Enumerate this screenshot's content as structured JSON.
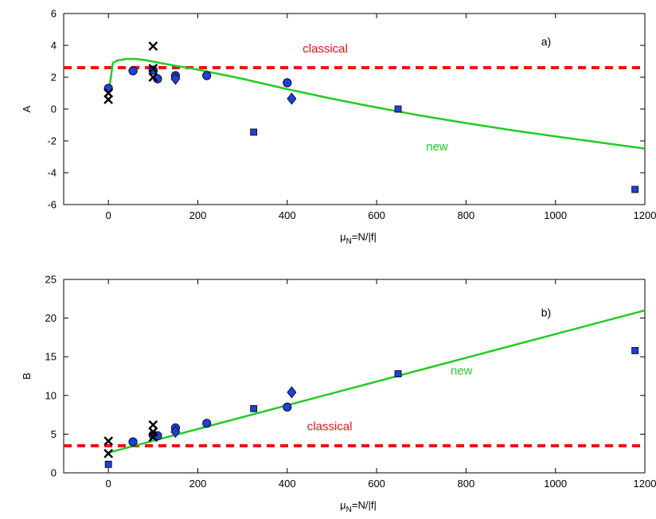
{
  "chart_data": [
    {
      "type": "scatter",
      "panel": "a)",
      "xlabel_main": "μ",
      "xlabel_sub": "N",
      "xlabel_rest": "=N/|f|",
      "ylabel": "A",
      "xlim": [
        -100,
        1200
      ],
      "ylim": [
        -6,
        6
      ],
      "xticks": [
        0,
        200,
        400,
        600,
        800,
        1000,
        1200
      ],
      "yticks": [
        -6,
        -4,
        -2,
        0,
        2,
        4,
        6
      ],
      "colors": {
        "marker_fill": "#1f3fd6",
        "classical": "#ee1111",
        "new": "#22cc22"
      },
      "classical": {
        "label": "classical",
        "y": 2.6,
        "label_x": 485,
        "label_y": 3.55
      },
      "new_curve": {
        "label": "new",
        "label_x": 735,
        "label_y": -2.6,
        "points": [
          [
            0,
            1.0
          ],
          [
            5,
            1.9
          ],
          [
            10,
            2.9
          ],
          [
            20,
            3.05
          ],
          [
            40,
            3.15
          ],
          [
            60,
            3.15
          ],
          [
            80,
            3.08
          ],
          [
            100,
            2.98
          ],
          [
            150,
            2.72
          ],
          [
            200,
            2.48
          ],
          [
            300,
            1.9
          ],
          [
            400,
            1.25
          ],
          [
            500,
            0.65
          ],
          [
            600,
            0.1
          ],
          [
            700,
            -0.42
          ],
          [
            800,
            -0.88
          ],
          [
            900,
            -1.32
          ],
          [
            1000,
            -1.72
          ],
          [
            1100,
            -2.1
          ],
          [
            1200,
            -2.48
          ]
        ]
      },
      "circles": [
        [
          0,
          1.3
        ],
        [
          55,
          2.4
        ],
        [
          100,
          2.45
        ],
        [
          110,
          1.9
        ],
        [
          150,
          2.1
        ],
        [
          220,
          2.1
        ],
        [
          400,
          1.65
        ]
      ],
      "diamonds": [
        [
          150,
          1.9
        ],
        [
          410,
          0.65
        ]
      ],
      "squares": [
        [
          325,
          -1.45
        ],
        [
          648,
          0.0
        ],
        [
          1178,
          -5.05
        ]
      ],
      "crosses": [
        [
          0,
          0.6
        ],
        [
          0,
          1.0
        ],
        [
          100,
          3.95
        ],
        [
          100,
          2.55
        ],
        [
          100,
          2.0
        ]
      ]
    },
    {
      "type": "scatter",
      "panel": "b)",
      "xlabel_main": "μ",
      "xlabel_sub": "N",
      "xlabel_rest": "=N/|f|",
      "ylabel": "B",
      "xlim": [
        -100,
        1200
      ],
      "ylim": [
        0,
        25
      ],
      "xticks": [
        0,
        200,
        400,
        600,
        800,
        1000,
        1200
      ],
      "yticks": [
        0,
        5,
        10,
        15,
        20,
        25
      ],
      "colors": {
        "marker_fill": "#1f3fd6",
        "classical": "#ee1111",
        "new": "#22cc22"
      },
      "classical": {
        "label": "classical",
        "y": 3.5,
        "label_x": 495,
        "label_y": 5.5
      },
      "new_curve": {
        "label": "new",
        "label_x": 790,
        "label_y": 12.7,
        "points": [
          [
            0,
            2.6
          ],
          [
            1200,
            21.0
          ]
        ]
      },
      "circles": [
        [
          55,
          4.0
        ],
        [
          100,
          4.9
        ],
        [
          110,
          4.8
        ],
        [
          150,
          5.8
        ],
        [
          220,
          6.4
        ],
        [
          400,
          8.5
        ]
      ],
      "diamonds": [
        [
          150,
          5.3
        ],
        [
          410,
          10.4
        ]
      ],
      "squares": [
        [
          0,
          1.1
        ],
        [
          325,
          8.3
        ],
        [
          648,
          12.8
        ],
        [
          1178,
          15.8
        ]
      ],
      "crosses": [
        [
          0,
          4.1
        ],
        [
          0,
          2.5
        ],
        [
          100,
          6.2
        ],
        [
          100,
          5.3
        ],
        [
          100,
          4.6
        ]
      ]
    }
  ]
}
